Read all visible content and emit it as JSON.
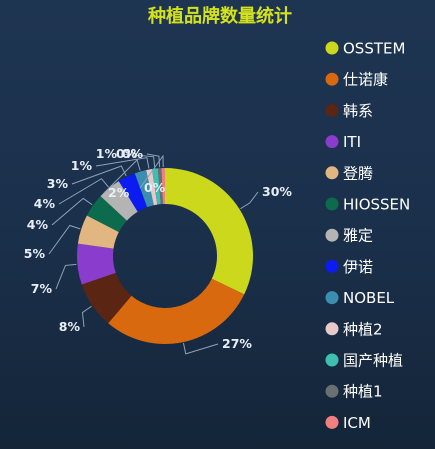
{
  "chart_data": {
    "type": "pie",
    "title": "种植品牌数量统计",
    "title_color": "#d4e21c",
    "label_color": "#e8eef5",
    "legend_position": "right",
    "categories": [
      "OSSTEM",
      "仕诺康",
      "韩系",
      "ITI",
      "登腾",
      "HIOSSEN",
      "雅定",
      "伊诺",
      "NOBEL",
      "种植2",
      "国产种植",
      "种植1",
      "ICM"
    ],
    "values": [
      30,
      27,
      8,
      7,
      5,
      4,
      4,
      3,
      2,
      1,
      1,
      0,
      0
    ],
    "labels": [
      "30%",
      "27%",
      "8%",
      "7%",
      "5%",
      "4%",
      "4%",
      "3%",
      "2%",
      "1%",
      "1%",
      "0%",
      "0%"
    ],
    "colors": [
      "#cbd81c",
      "#d8690f",
      "#5a2512",
      "#8a3ccc",
      "#e2b680",
      "#0b6b4c",
      "#b4b4b4",
      "#0c1cf0",
      "#3b8eb0",
      "#e8c8c8",
      "#3fbfb0",
      "#6a6f72",
      "#f08080"
    ],
    "extra_labels": [
      "0%"
    ]
  }
}
